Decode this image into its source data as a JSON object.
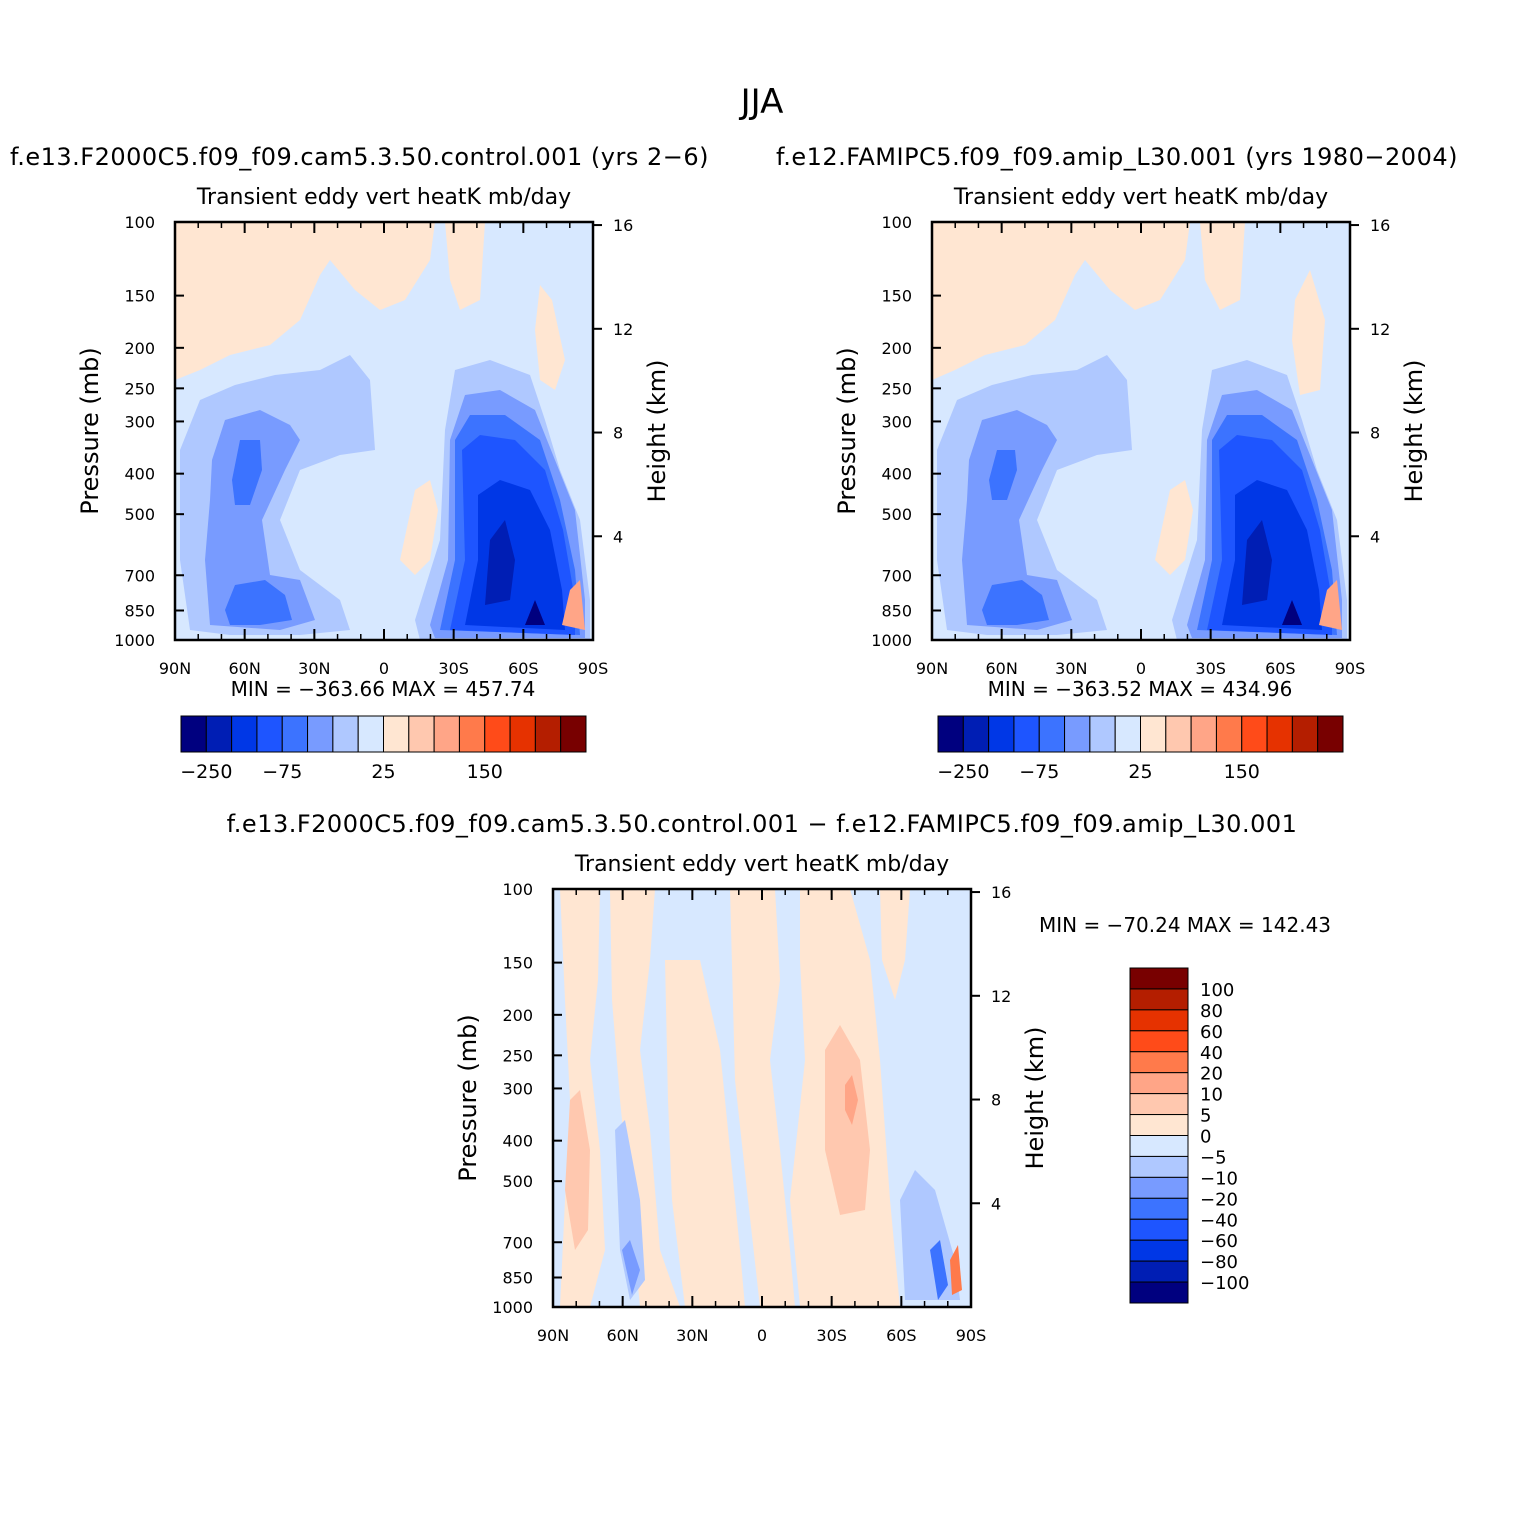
{
  "page_title": "JJA",
  "colors": {
    "palette": [
      "#00007f",
      "#001eb4",
      "#0037e6",
      "#1e55ff",
      "#3c73ff",
      "#789bff",
      "#afc8ff",
      "#d7e8ff",
      "#ffe6d2",
      "#ffc8af",
      "#ffa587",
      "#ff7a4b",
      "#ff4b19",
      "#e63200",
      "#b41e00",
      "#780000"
    ],
    "main_blue": "#d7e8ff",
    "main_peach": "#ffe6d2"
  },
  "panels": [
    {
      "header": "f.e13.F2000C5.f09_f09.cam5.3.50.control.001 (yrs 2−6)",
      "title": "Transient eddy vert heatK mb/day",
      "ylabel": "Pressure (mb)",
      "ylabel_right": "Height (km)",
      "stats": "MIN = −363.66   MAX = 457.74",
      "colorbar_ticks": [
        "−250",
        "−75",
        "25",
        "150"
      ]
    },
    {
      "header": "f.e12.FAMIPC5.f09_f09.amip_L30.001 (yrs 1980−2004)",
      "title": "Transient eddy vert heatK mb/day",
      "ylabel": "Pressure (mb)",
      "ylabel_right": "Height (km)",
      "stats": "MIN = −363.52   MAX = 434.96",
      "colorbar_ticks": [
        "−250",
        "−75",
        "25",
        "150"
      ]
    },
    {
      "header": "f.e13.F2000C5.f09_f09.cam5.3.50.control.001 − f.e12.FAMIPC5.f09_f09.amip_L30.001",
      "title": "Transient eddy vert heatK mb/day",
      "ylabel": "Pressure (mb)",
      "ylabel_right": "Height (km)",
      "stats": "MIN = −70.24   MAX = 142.43",
      "colorbar_levels": [
        "100",
        "80",
        "60",
        "40",
        "20",
        "10",
        "5",
        "0",
        "−5",
        "−10",
        "−20",
        "−40",
        "−60",
        "−80",
        "−100"
      ],
      "colorbar_colors": [
        "#780000",
        "#b41e00",
        "#e63200",
        "#ff4b19",
        "#ff7a4b",
        "#ffa587",
        "#ffc8af",
        "#ffe6d2",
        "#d7e8ff",
        "#afc8ff",
        "#789bff",
        "#3c73ff",
        "#1e55ff",
        "#0037e6",
        "#001eb4",
        "#00007f"
      ]
    }
  ],
  "chart_data": [
    {
      "type": "heatmap",
      "title": "Transient eddy vert heatK mb/day",
      "ylabel": "Pressure (mb)",
      "ylabel_right": "Height (km)",
      "x_ticks": [
        "90N",
        "60N",
        "30N",
        "0",
        "30S",
        "60S",
        "90S"
      ],
      "y_ticks": [
        100,
        150,
        200,
        250,
        300,
        400,
        500,
        700,
        850,
        1000
      ],
      "y_scale": "log",
      "y_right_ticks": [
        4,
        8,
        12,
        16
      ],
      "min": -363.66,
      "max": 457.74
    },
    {
      "type": "heatmap",
      "title": "Transient eddy vert heatK mb/day",
      "ylabel": "Pressure (mb)",
      "ylabel_right": "Height (km)",
      "x_ticks": [
        "90N",
        "60N",
        "30N",
        "0",
        "30S",
        "60S",
        "90S"
      ],
      "y_ticks": [
        100,
        150,
        200,
        250,
        300,
        400,
        500,
        700,
        850,
        1000
      ],
      "y_scale": "log",
      "y_right_ticks": [
        4,
        8,
        12,
        16
      ],
      "min": -363.52,
      "max": 434.96
    },
    {
      "type": "heatmap",
      "title": "Transient eddy vert heatK mb/day",
      "ylabel": "Pressure (mb)",
      "ylabel_right": "Height (km)",
      "x_ticks": [
        "90N",
        "60N",
        "30N",
        "0",
        "30S",
        "60S",
        "90S"
      ],
      "y_ticks": [
        100,
        150,
        200,
        250,
        300,
        400,
        500,
        700,
        850,
        1000
      ],
      "y_scale": "log",
      "y_right_ticks": [
        4,
        8,
        12,
        16
      ],
      "min": -70.24,
      "max": 142.43
    }
  ]
}
